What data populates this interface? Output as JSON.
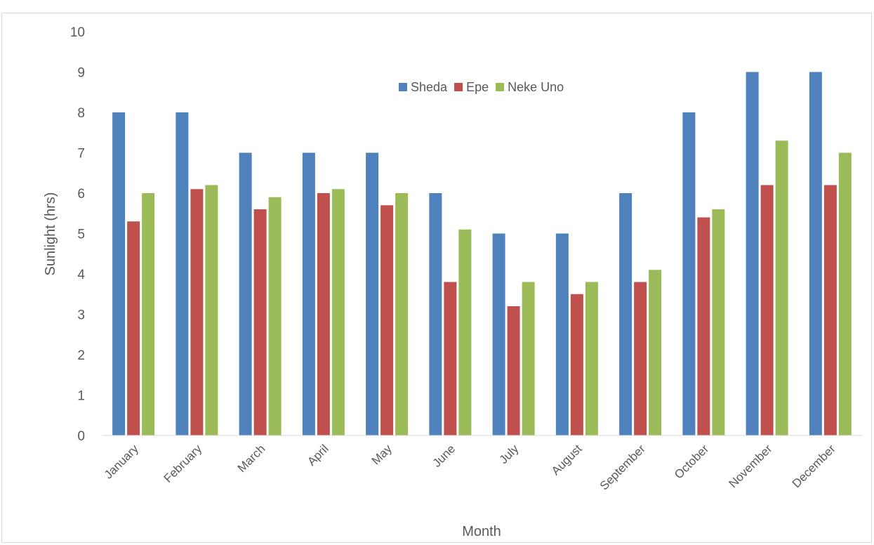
{
  "chart_data": {
    "type": "bar",
    "title": "",
    "xlabel": "Month",
    "ylabel": "Sunlight (hrs)",
    "ylim": [
      0,
      10
    ],
    "yticks": [
      "0",
      "1",
      "2",
      "3",
      "4",
      "5",
      "6",
      "7",
      "8",
      "9",
      "10"
    ],
    "grid": false,
    "legend_position": "top-center",
    "categories": [
      "January",
      "February",
      "March",
      "April",
      "May",
      "June",
      "July",
      "August",
      "September",
      "October",
      "November",
      "December"
    ],
    "series": [
      {
        "name": "Sheda",
        "color": "#4f81bd",
        "values": [
          8,
          8,
          7,
          7,
          7,
          6,
          5,
          5,
          6,
          8,
          9,
          9
        ]
      },
      {
        "name": "Epe",
        "color": "#c0504d",
        "values": [
          5.3,
          6.1,
          5.6,
          6.0,
          5.7,
          3.8,
          3.2,
          3.5,
          3.8,
          5.4,
          6.2,
          6.2
        ]
      },
      {
        "name": "Neke Uno",
        "color": "#9bbb59",
        "values": [
          6.0,
          6.2,
          5.9,
          6.1,
          6.0,
          5.1,
          3.8,
          3.8,
          4.1,
          5.6,
          7.3,
          7.0
        ]
      }
    ]
  }
}
